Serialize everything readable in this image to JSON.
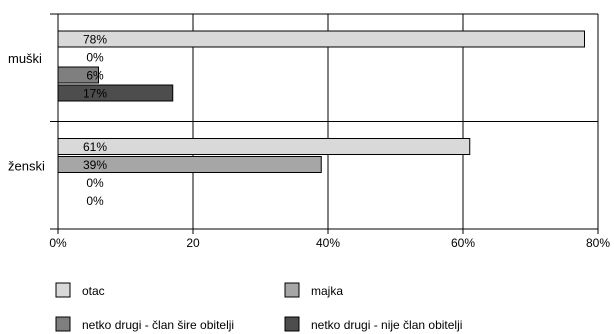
{
  "chart_data": {
    "type": "bar",
    "orientation": "horizontal",
    "categories": [
      "muški",
      "ženski"
    ],
    "series": [
      {
        "name": "otac",
        "values": [
          78,
          61
        ],
        "labels": [
          "78%",
          "61%"
        ],
        "color": "#d9d9d9"
      },
      {
        "name": "majka",
        "values": [
          0,
          39
        ],
        "labels": [
          "0%",
          "39%"
        ],
        "color": "#a6a6a6"
      },
      {
        "name": "netko drugi - član šire obitelji",
        "values": [
          6,
          0
        ],
        "labels": [
          "6%",
          "0%"
        ],
        "color": "#7f7f7f"
      },
      {
        "name": "netko drugi - nije član obitelji",
        "values": [
          17,
          0
        ],
        "labels": [
          "17%",
          "0%"
        ],
        "color": "#4d4d4d"
      }
    ],
    "xlim": [
      0,
      80
    ],
    "x_ticks": [
      0,
      20,
      40,
      60,
      80
    ],
    "x_tick_labels": [
      "0%",
      "20",
      "40%",
      "60%",
      "80%"
    ],
    "grid": true,
    "legend_position": "bottom"
  }
}
